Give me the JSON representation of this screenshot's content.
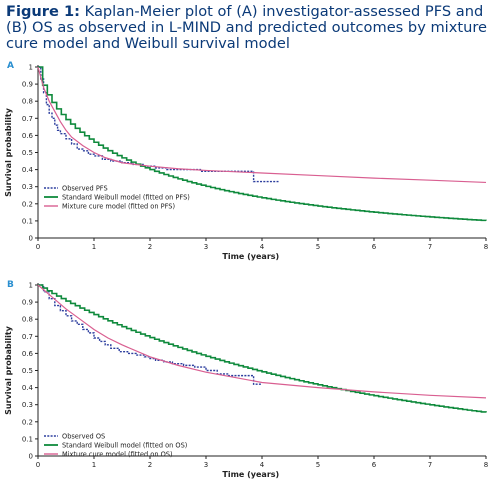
{
  "caption": {
    "label": "Figure 1:",
    "text": "Kaplan-Meier plot of (A) investigator-assessed PFS and (B) OS as observed in L-MIND and predicted outcomes by mixture cure model and Weibull survival model"
  },
  "colors": {
    "observed": "#2c3e9e",
    "weibull": "#0f8a3c",
    "cure": "#d95f91",
    "panel_label": "#2a8fd0"
  },
  "chart_data": [
    {
      "type": "line",
      "panel": "A",
      "xlabel": "Time (years)",
      "ylabel": "Survival probability",
      "xlim": [
        0,
        8
      ],
      "ylim": [
        0,
        1
      ],
      "xticks": [
        0,
        1,
        2,
        3,
        4,
        5,
        6,
        7,
        8
      ],
      "yticks": [
        0,
        0.1,
        0.2,
        0.3,
        0.4,
        0.5,
        0.6,
        0.7,
        0.8,
        0.9,
        1
      ],
      "legend_position": "bottom-left",
      "series": [
        {
          "name": "Observed PFS",
          "style": "dashed-step",
          "x": [
            0,
            0.05,
            0.1,
            0.15,
            0.2,
            0.25,
            0.3,
            0.35,
            0.4,
            0.5,
            0.6,
            0.7,
            0.8,
            0.9,
            1.0,
            1.15,
            1.3,
            1.5,
            1.7,
            1.9,
            2.1,
            2.3,
            2.6,
            2.9,
            3.2,
            3.5,
            3.8,
            3.85,
            4.3
          ],
          "y": [
            1.0,
            0.93,
            0.85,
            0.78,
            0.73,
            0.7,
            0.66,
            0.63,
            0.61,
            0.58,
            0.55,
            0.52,
            0.51,
            0.49,
            0.48,
            0.46,
            0.45,
            0.44,
            0.43,
            0.42,
            0.41,
            0.4,
            0.4,
            0.39,
            0.39,
            0.39,
            0.39,
            0.33,
            0.33
          ]
        },
        {
          "name": "Standard Weibull model (fitted on PFS)",
          "style": "step",
          "weibull_lambda": 0.58,
          "weibull_k": 0.66
        },
        {
          "name": "Mixture cure model (fitted on PFS)",
          "style": "line",
          "x": [
            0,
            0.05,
            0.1,
            0.2,
            0.3,
            0.4,
            0.5,
            0.6,
            0.8,
            1.0,
            1.2,
            1.5,
            2.0,
            2.5,
            3.0,
            4.0,
            5.0,
            6.0,
            7.0,
            8.0
          ],
          "y": [
            1.0,
            0.94,
            0.88,
            0.8,
            0.74,
            0.68,
            0.63,
            0.59,
            0.54,
            0.5,
            0.47,
            0.44,
            0.42,
            0.405,
            0.395,
            0.38,
            0.365,
            0.35,
            0.338,
            0.325
          ]
        }
      ]
    },
    {
      "type": "line",
      "panel": "B",
      "xlabel": "Time (years)",
      "ylabel": "Survival probability",
      "xlim": [
        0,
        8
      ],
      "ylim": [
        0,
        1
      ],
      "xticks": [
        0,
        1,
        2,
        3,
        4,
        5,
        6,
        7,
        8
      ],
      "yticks": [
        0,
        0.1,
        0.2,
        0.3,
        0.4,
        0.5,
        0.6,
        0.7,
        0.8,
        0.9,
        1
      ],
      "legend_position": "bottom-left",
      "series": [
        {
          "name": "Observed OS",
          "style": "dashed-step",
          "x": [
            0,
            0.1,
            0.2,
            0.3,
            0.4,
            0.5,
            0.6,
            0.7,
            0.8,
            0.9,
            1.0,
            1.1,
            1.2,
            1.3,
            1.45,
            1.6,
            1.75,
            1.9,
            2.0,
            2.1,
            2.25,
            2.4,
            2.6,
            2.8,
            3.0,
            3.2,
            3.4,
            3.6,
            3.8,
            3.85,
            4.0
          ],
          "y": [
            1.0,
            0.96,
            0.92,
            0.88,
            0.85,
            0.82,
            0.79,
            0.77,
            0.74,
            0.72,
            0.69,
            0.67,
            0.65,
            0.63,
            0.61,
            0.6,
            0.59,
            0.58,
            0.57,
            0.56,
            0.55,
            0.54,
            0.53,
            0.52,
            0.5,
            0.48,
            0.47,
            0.47,
            0.47,
            0.42,
            0.42
          ]
        },
        {
          "name": "Standard Weibull model (fitted on OS)",
          "style": "step",
          "weibull_lambda": 0.19,
          "weibull_k": 0.95
        },
        {
          "name": "Mixture cure model (fitted on OS)",
          "style": "line",
          "x": [
            0,
            0.25,
            0.5,
            0.75,
            1.0,
            1.25,
            1.5,
            2.0,
            2.5,
            3.0,
            3.5,
            4.0,
            5.0,
            6.0,
            7.0,
            8.0
          ],
          "y": [
            1.0,
            0.93,
            0.86,
            0.8,
            0.74,
            0.69,
            0.65,
            0.58,
            0.53,
            0.49,
            0.46,
            0.43,
            0.4,
            0.375,
            0.355,
            0.34
          ]
        }
      ]
    }
  ]
}
